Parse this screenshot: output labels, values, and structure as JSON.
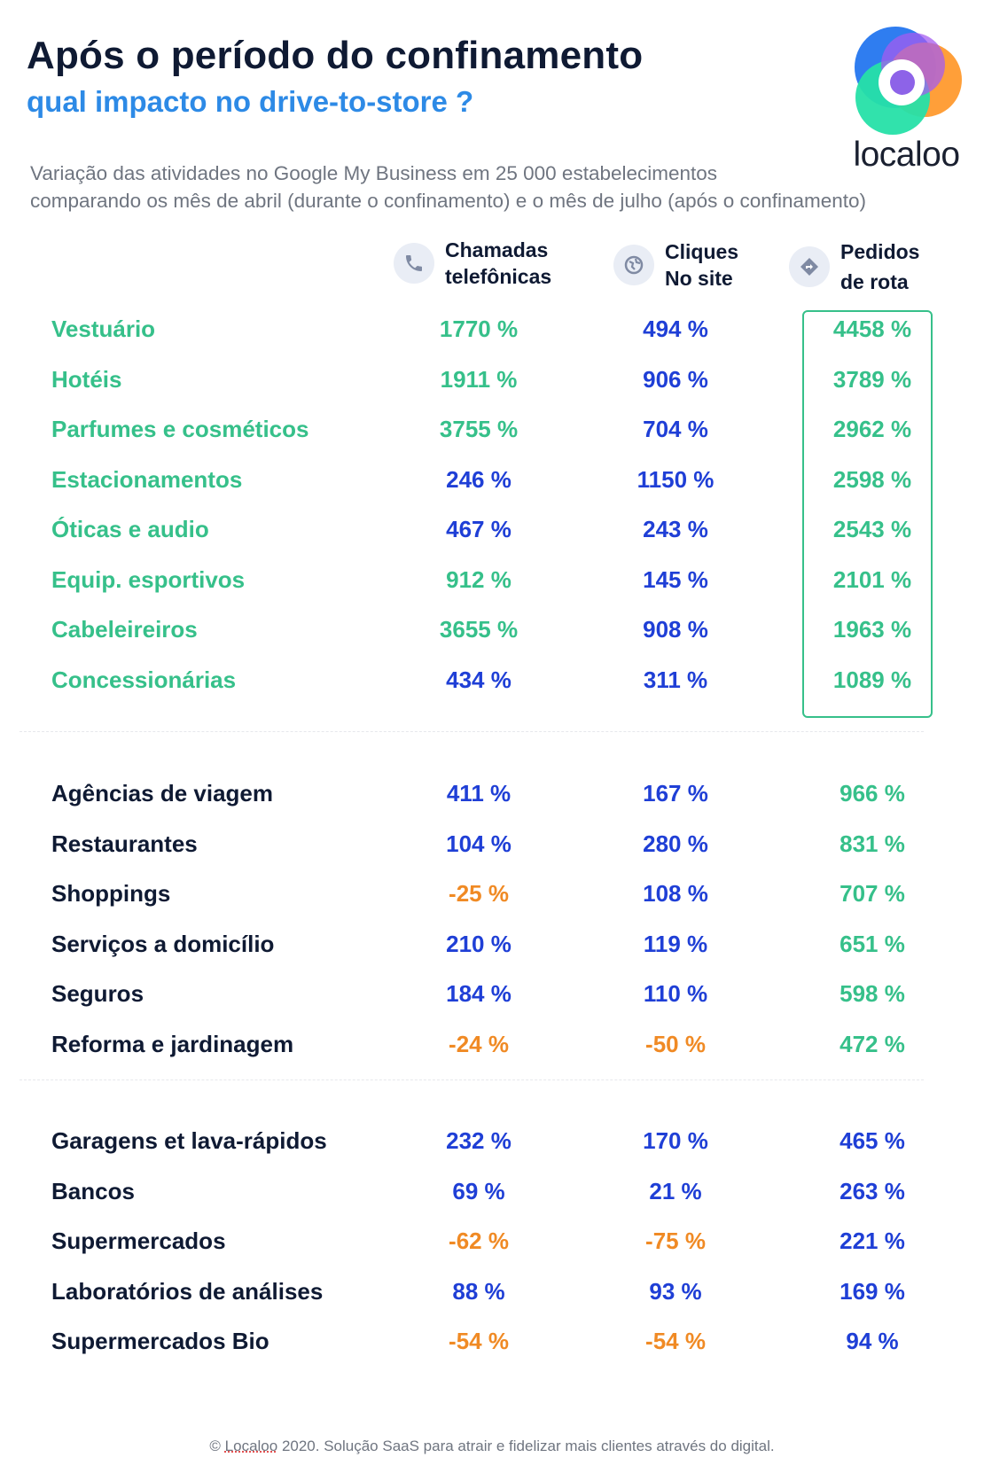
{
  "header": {
    "title": "Após o período do confinamento",
    "subtitle": "qual impacto no drive-to-store ?",
    "description_line1": "Variação das atividades no Google My Business em 25 000 estabelecimentos",
    "description_line2": "comparando os mês de abril (durante o confinamento) e o mês de julho (após o confinamento)"
  },
  "logo": {
    "wordmark": "localoo"
  },
  "columns": [
    {
      "line1": "Chamadas",
      "line2": "telefônicas",
      "icon": "phone-icon"
    },
    {
      "line1": "Cliques",
      "line2": "No site",
      "icon": "globe-icon"
    },
    {
      "line1": "Pedidos",
      "line2": "de rota",
      "icon": "directions-icon"
    }
  ],
  "colors": {
    "featured": "#36c08a",
    "positive": "#1f3fd6",
    "negative": "#f08a24",
    "title": "#0f1a33",
    "subtitle": "#2d8ae6"
  },
  "chart_data": {
    "type": "table",
    "columns": [
      "Chamadas telefônicas",
      "Cliques No site",
      "Pedidos de rota"
    ],
    "unit": "%",
    "groups": [
      {
        "highlighted": true,
        "rows": [
          {
            "category": "Vestuário",
            "values": [
              1770,
              494,
              4458
            ]
          },
          {
            "category": "Hotéis",
            "values": [
              1911,
              906,
              3789
            ]
          },
          {
            "category": "Parfumes e cosméticos",
            "values": [
              3755,
              704,
              2962
            ]
          },
          {
            "category": "Estacionamentos",
            "values": [
              246,
              1150,
              2598
            ]
          },
          {
            "category": "Óticas e audio",
            "values": [
              467,
              243,
              2543
            ]
          },
          {
            "category": "Equip. esportivos",
            "values": [
              912,
              145,
              2101
            ]
          },
          {
            "category": "Cabeleireiros",
            "values": [
              3655,
              908,
              1963
            ]
          },
          {
            "category": "Concessionárias",
            "values": [
              434,
              311,
              1089
            ]
          }
        ]
      },
      {
        "highlighted": false,
        "rows": [
          {
            "category": "Agências de viagem",
            "values": [
              411,
              167,
              966
            ]
          },
          {
            "category": "Restaurantes",
            "values": [
              104,
              280,
              831
            ]
          },
          {
            "category": "Shoppings",
            "values": [
              -25,
              108,
              707
            ]
          },
          {
            "category": "Serviços a domicílio",
            "values": [
              210,
              119,
              651
            ]
          },
          {
            "category": "Seguros",
            "values": [
              184,
              110,
              598
            ]
          },
          {
            "category": "Reforma e jardinagem",
            "values": [
              -24,
              -50,
              472
            ]
          }
        ]
      },
      {
        "highlighted": false,
        "rows": [
          {
            "category": "Garagens et lava-rápidos",
            "values": [
              232,
              170,
              465
            ]
          },
          {
            "category": "Bancos",
            "values": [
              69,
              21,
              263
            ]
          },
          {
            "category": "Supermercados",
            "values": [
              -62,
              -75,
              221
            ]
          },
          {
            "category": "Laboratórios de análises",
            "values": [
              88,
              93,
              169
            ]
          },
          {
            "category": "Supermercados Bio",
            "values": [
              -54,
              -54,
              94
            ]
          }
        ]
      }
    ]
  },
  "footer": {
    "prefix": "© ",
    "brand": "Localoo",
    "rest": " 2020. Solução SaaS para atrair e fidelizar mais clientes através do digital."
  }
}
